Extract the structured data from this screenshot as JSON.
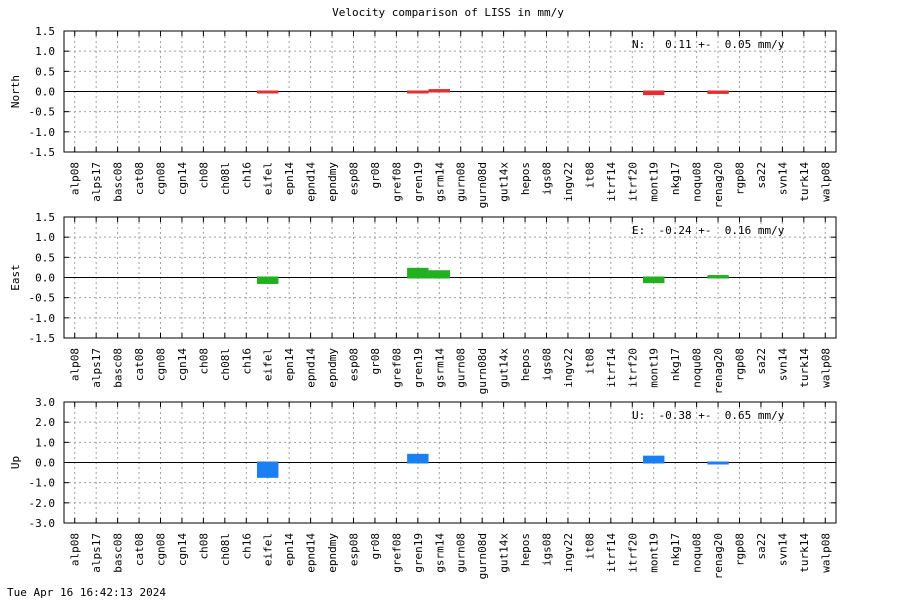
{
  "chart_data": {
    "title": "Velocity comparison of LISS in mm/y",
    "type": "bar",
    "grid": true,
    "categories": [
      "alp08",
      "alps17",
      "basc08",
      "cat08",
      "cgn08",
      "cgn14",
      "ch08",
      "ch08l",
      "ch16",
      "eifel",
      "epn14",
      "epnd14",
      "epndmy",
      "esp08",
      "gr08",
      "gref08",
      "gren19",
      "gsrm14",
      "gurn08",
      "gurn08d",
      "gut14x",
      "hepos",
      "igs08",
      "ingv22",
      "it08",
      "itrf14",
      "itrf20",
      "mont19",
      "nkg17",
      "noqu08",
      "renag20",
      "rgp08",
      "sa22",
      "svn14",
      "turk14",
      "walp08"
    ],
    "panels": [
      {
        "ylabel": "North",
        "color": "#e03030",
        "ylim": [
          -1.5,
          1.5
        ],
        "yticks": [
          "1.5",
          "1.0",
          "0.5",
          "0.0",
          "-0.5",
          "-1.0",
          "-1.5"
        ],
        "stat": "N:   0.11 +-  0.05 mm/y",
        "values": [
          null,
          null,
          null,
          null,
          null,
          null,
          null,
          null,
          null,
          0.02,
          null,
          null,
          null,
          null,
          null,
          null,
          0.02,
          0.06,
          null,
          null,
          null,
          null,
          null,
          null,
          null,
          null,
          null,
          -0.09,
          null,
          null,
          -0.06,
          null,
          null,
          null,
          null,
          null
        ]
      },
      {
        "ylabel": "East",
        "color": "#20b020",
        "ylim": [
          -1.5,
          1.5
        ],
        "yticks": [
          "1.5",
          "1.0",
          "0.5",
          "0.0",
          "-0.5",
          "-1.0",
          "-1.5"
        ],
        "stat": "E:  -0.24 +-  0.16 mm/y",
        "values": [
          null,
          null,
          null,
          null,
          null,
          null,
          null,
          null,
          null,
          -0.16,
          null,
          null,
          null,
          null,
          null,
          null,
          0.24,
          0.18,
          null,
          null,
          null,
          null,
          null,
          null,
          null,
          null,
          null,
          -0.14,
          null,
          null,
          0.06,
          null,
          null,
          null,
          null,
          null
        ]
      },
      {
        "ylabel": "Up",
        "color": "#1880f0",
        "ylim": [
          -3.0,
          3.0
        ],
        "yticks": [
          "3.0",
          "2.0",
          "1.0",
          "0.0",
          "-1.0",
          "-2.0",
          "-3.0"
        ],
        "stat": "U:  -0.38 +-  0.65 mm/y",
        "values": [
          null,
          null,
          null,
          null,
          null,
          null,
          null,
          null,
          null,
          -0.76,
          null,
          null,
          null,
          null,
          null,
          null,
          0.43,
          null,
          null,
          null,
          null,
          null,
          null,
          null,
          null,
          null,
          null,
          0.34,
          null,
          null,
          0.04,
          null,
          null,
          null,
          null,
          null
        ]
      }
    ]
  },
  "footer": "Tue Apr 16 16:42:13 2024"
}
